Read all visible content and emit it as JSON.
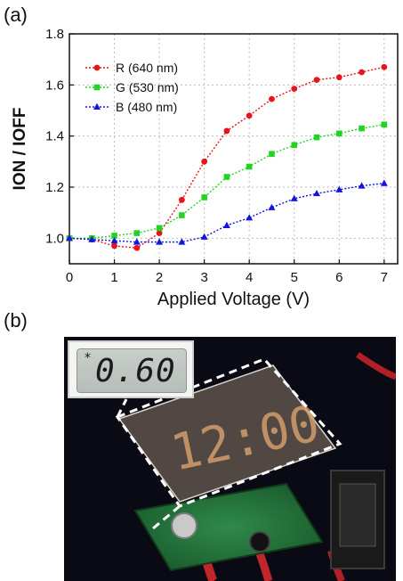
{
  "figure": {
    "panel_a_label": "(a)",
    "panel_b_label": "(b)"
  },
  "chart_data": {
    "type": "line",
    "title": "",
    "xlabel": "Applied Voltage (V)",
    "ylabel": "ION / IOFF",
    "xlim": [
      0,
      7.3
    ],
    "ylim": [
      0.9,
      1.8
    ],
    "x_ticks": [
      0,
      1,
      2,
      3,
      4,
      5,
      6,
      7
    ],
    "y_ticks": [
      1.0,
      1.2,
      1.4,
      1.6,
      1.8
    ],
    "grid": true,
    "legend_position": "top-left",
    "series": [
      {
        "name": "R (640 nm)",
        "color": "#e8141c",
        "marker": "circle",
        "x": [
          0,
          0.5,
          1,
          1.5,
          2,
          2.5,
          3,
          3.5,
          4,
          4.5,
          5,
          5.5,
          6,
          6.5,
          7
        ],
        "y": [
          1.0,
          0.995,
          0.97,
          0.962,
          1.02,
          1.15,
          1.3,
          1.42,
          1.48,
          1.545,
          1.585,
          1.62,
          1.63,
          1.65,
          1.67
        ]
      },
      {
        "name": "G (530 nm)",
        "color": "#22d422",
        "marker": "square",
        "x": [
          0,
          0.5,
          1,
          1.5,
          2,
          2.5,
          3,
          3.5,
          4,
          4.5,
          5,
          5.5,
          6,
          6.5,
          7
        ],
        "y": [
          1.0,
          1.0,
          1.01,
          1.02,
          1.04,
          1.09,
          1.16,
          1.24,
          1.28,
          1.33,
          1.365,
          1.395,
          1.41,
          1.43,
          1.445
        ]
      },
      {
        "name": "B (480 nm)",
        "color": "#1414e0",
        "marker": "triangle",
        "x": [
          0,
          0.5,
          1,
          1.5,
          2,
          2.5,
          3,
          3.5,
          4,
          4.5,
          5,
          5.5,
          6,
          6.5,
          7
        ],
        "y": [
          1.0,
          0.995,
          0.99,
          0.985,
          0.985,
          0.985,
          1.005,
          1.05,
          1.08,
          1.12,
          1.155,
          1.175,
          1.19,
          1.205,
          1.215
        ]
      }
    ]
  },
  "photo": {
    "inset_reading": "0.60",
    "inset_star": "*",
    "device_display": "12:00"
  }
}
